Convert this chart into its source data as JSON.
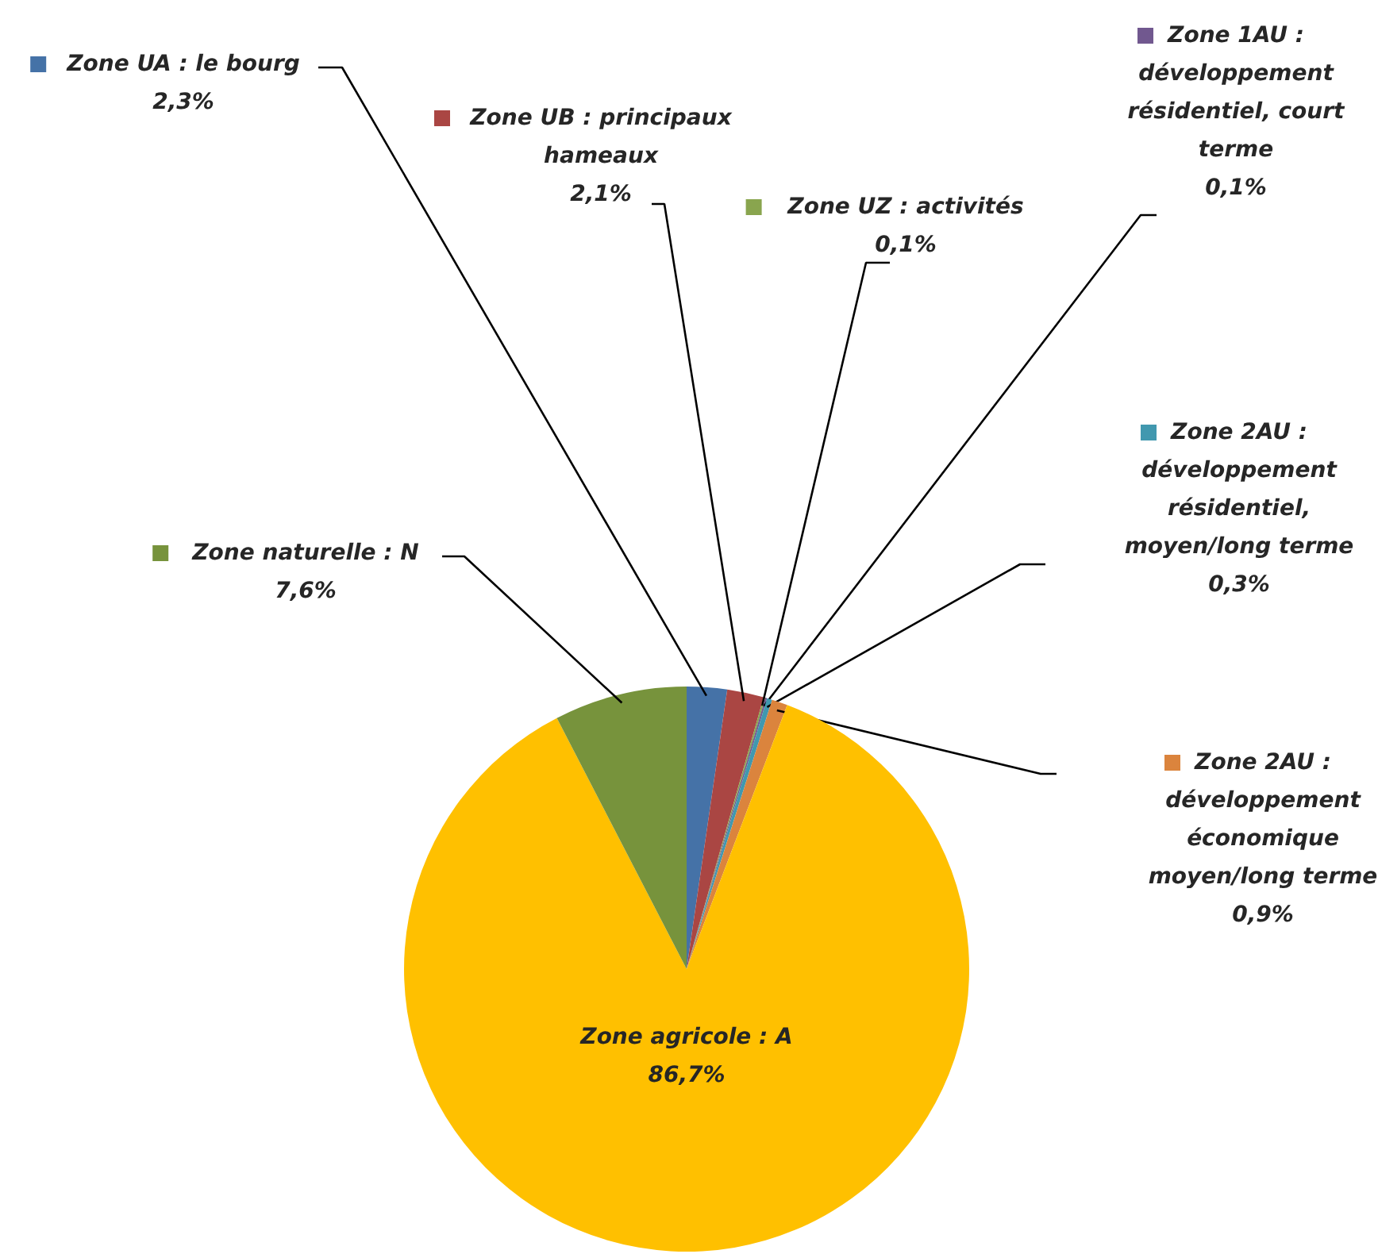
{
  "chart_data": {
    "type": "pie",
    "categories": [
      "Zone UA : le bourg",
      "Zone UB : principaux hameaux",
      "Zone UZ : activités",
      "Zone 1AU : développement résidentiel, court terme",
      "Zone 2AU : développement résidentiel, moyen/long terme",
      "Zone 2AU : développement économique moyen/long terme",
      "Zone agricole : A",
      "Zone naturelle : N"
    ],
    "values": [
      2.3,
      2.1,
      0.1,
      0.1,
      0.3,
      0.9,
      86.7,
      7.6
    ],
    "colors": [
      "#4572a7",
      "#aa4643",
      "#89a54e",
      "#71588f",
      "#4198af",
      "#db843d",
      "#ffc000",
      "#77933c"
    ],
    "legend": "top",
    "value_labels": [
      "2,3%",
      "2,1%",
      "0,1%",
      "0,1%",
      "0,3%",
      "0,9%",
      "86,7%",
      "7,6%"
    ]
  }
}
